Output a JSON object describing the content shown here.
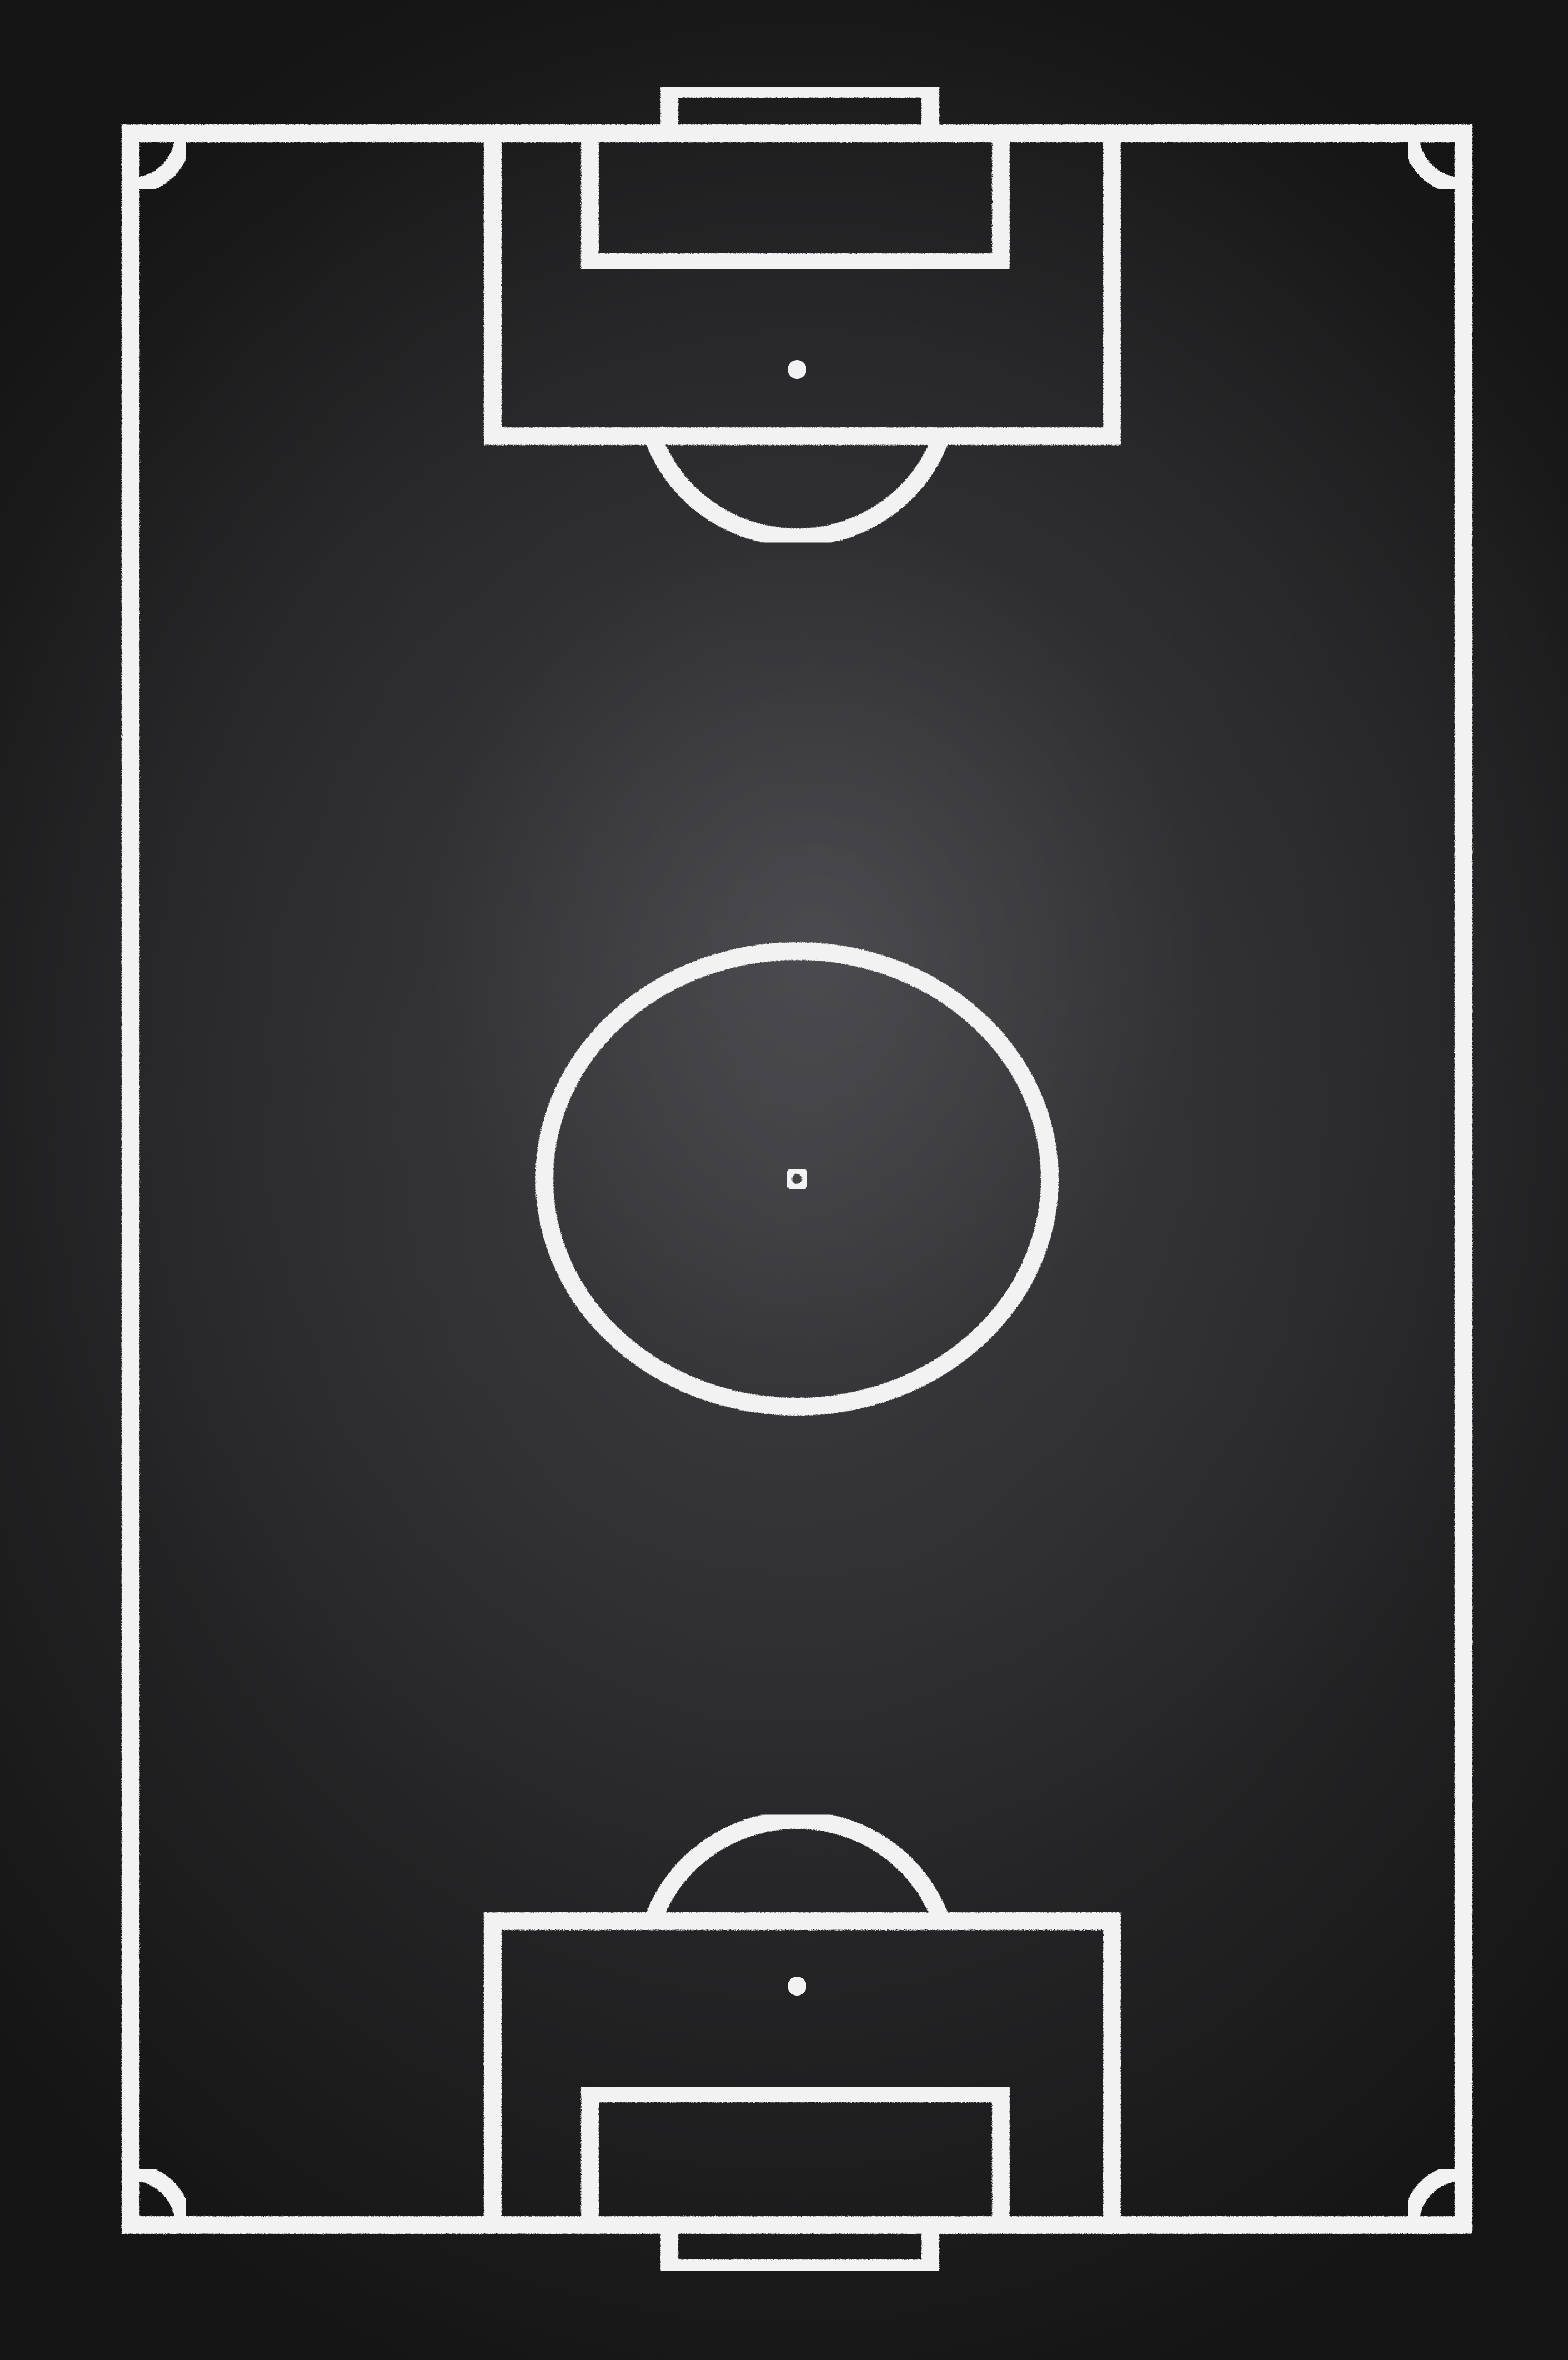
{
  "board": {
    "background_color": "#2b2b2d",
    "line_color": "#f2f2f2"
  },
  "pitch": {
    "description_icon": "football-pitch-icon"
  }
}
